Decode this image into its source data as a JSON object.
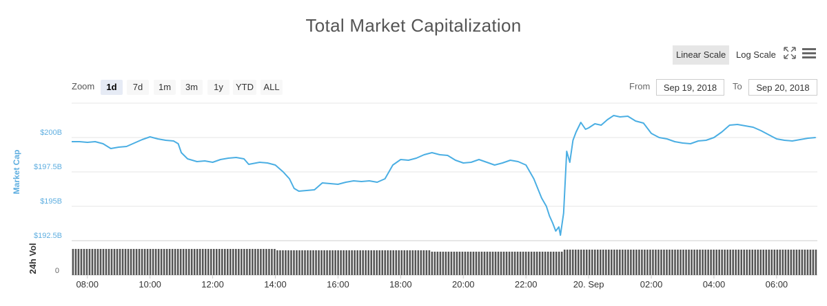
{
  "title": "Total Market Capitalization",
  "scale_buttons": {
    "linear": "Linear Scale",
    "log": "Log Scale"
  },
  "icons": {
    "fullscreen": "fullscreen-icon",
    "menu": "hamburger-menu-icon"
  },
  "zoom": {
    "label": "Zoom",
    "buttons": [
      "1d",
      "7d",
      "1m",
      "3m",
      "1y",
      "YTD",
      "ALL"
    ],
    "selected": "1d"
  },
  "range": {
    "from_label": "From",
    "from_value": "Sep 19, 2018",
    "to_label": "To",
    "to_value": "Sep 20, 2018"
  },
  "colors": {
    "line": "#4aaee3",
    "volume": "#555555",
    "axis_text": "#5eaee0",
    "grid": "#e6e6e6"
  },
  "chart_data": {
    "type": "line",
    "ylabel": "Market Cap",
    "ylim": [
      192.5,
      202.5
    ],
    "y_ticks": [
      "$192.5B",
      "$195B",
      "$197.5B",
      "$200B"
    ],
    "y_tick_values": [
      192.5,
      195,
      197.5,
      200
    ],
    "x_ticks": [
      "08:00",
      "10:00",
      "12:00",
      "14:00",
      "16:00",
      "18:00",
      "20:00",
      "22:00",
      "20. Sep",
      "02:00",
      "04:00",
      "06:00"
    ],
    "x_tick_hours": [
      8,
      10,
      12,
      14,
      16,
      18,
      20,
      22,
      24,
      26,
      28,
      30
    ],
    "x_range_hours": [
      7.5,
      31.3
    ],
    "series": [
      {
        "points": [
          [
            7.5,
            199.7
          ],
          [
            7.75,
            199.7
          ],
          [
            8.0,
            199.65
          ],
          [
            8.25,
            199.7
          ],
          [
            8.5,
            199.55
          ],
          [
            8.75,
            199.2
          ],
          [
            9.0,
            199.3
          ],
          [
            9.25,
            199.35
          ],
          [
            9.5,
            199.6
          ],
          [
            9.75,
            199.85
          ],
          [
            10.0,
            200.05
          ],
          [
            10.25,
            199.9
          ],
          [
            10.5,
            199.8
          ],
          [
            10.75,
            199.75
          ],
          [
            10.9,
            199.55
          ],
          [
            11.0,
            198.9
          ],
          [
            11.2,
            198.45
          ],
          [
            11.5,
            198.25
          ],
          [
            11.75,
            198.3
          ],
          [
            12.0,
            198.2
          ],
          [
            12.25,
            198.4
          ],
          [
            12.5,
            198.5
          ],
          [
            12.75,
            198.55
          ],
          [
            13.0,
            198.45
          ],
          [
            13.15,
            198.05
          ],
          [
            13.5,
            198.2
          ],
          [
            13.75,
            198.15
          ],
          [
            14.0,
            198.0
          ],
          [
            14.25,
            197.5
          ],
          [
            14.45,
            197.0
          ],
          [
            14.6,
            196.3
          ],
          [
            14.75,
            196.1
          ],
          [
            15.0,
            196.15
          ],
          [
            15.25,
            196.2
          ],
          [
            15.5,
            196.7
          ],
          [
            15.75,
            196.65
          ],
          [
            16.0,
            196.6
          ],
          [
            16.25,
            196.75
          ],
          [
            16.5,
            196.85
          ],
          [
            16.75,
            196.8
          ],
          [
            17.0,
            196.85
          ],
          [
            17.25,
            196.75
          ],
          [
            17.5,
            197.0
          ],
          [
            17.75,
            198.0
          ],
          [
            18.0,
            198.4
          ],
          [
            18.25,
            198.35
          ],
          [
            18.5,
            198.5
          ],
          [
            18.75,
            198.75
          ],
          [
            19.0,
            198.9
          ],
          [
            19.25,
            198.75
          ],
          [
            19.5,
            198.7
          ],
          [
            19.75,
            198.35
          ],
          [
            20.0,
            198.15
          ],
          [
            20.25,
            198.2
          ],
          [
            20.5,
            198.4
          ],
          [
            20.75,
            198.2
          ],
          [
            21.0,
            198.0
          ],
          [
            21.25,
            198.15
          ],
          [
            21.5,
            198.35
          ],
          [
            21.75,
            198.25
          ],
          [
            22.0,
            198.0
          ],
          [
            22.25,
            197.0
          ],
          [
            22.5,
            195.6
          ],
          [
            22.65,
            195.0
          ],
          [
            22.75,
            194.3
          ],
          [
            22.85,
            193.8
          ],
          [
            22.95,
            193.2
          ],
          [
            23.05,
            193.5
          ],
          [
            23.1,
            192.9
          ],
          [
            23.2,
            194.5
          ],
          [
            23.3,
            199.0
          ],
          [
            23.4,
            198.2
          ],
          [
            23.5,
            199.8
          ],
          [
            23.6,
            200.4
          ],
          [
            23.75,
            201.1
          ],
          [
            23.9,
            200.6
          ],
          [
            24.0,
            200.7
          ],
          [
            24.2,
            201.0
          ],
          [
            24.4,
            200.9
          ],
          [
            24.6,
            201.3
          ],
          [
            24.8,
            201.6
          ],
          [
            25.0,
            201.5
          ],
          [
            25.25,
            201.55
          ],
          [
            25.5,
            201.2
          ],
          [
            25.75,
            201.05
          ],
          [
            26.0,
            200.3
          ],
          [
            26.25,
            200.0
          ],
          [
            26.5,
            199.9
          ],
          [
            26.75,
            199.7
          ],
          [
            27.0,
            199.6
          ],
          [
            27.25,
            199.55
          ],
          [
            27.5,
            199.75
          ],
          [
            27.75,
            199.8
          ],
          [
            28.0,
            200.0
          ],
          [
            28.25,
            200.4
          ],
          [
            28.5,
            200.9
          ],
          [
            28.75,
            200.95
          ],
          [
            29.0,
            200.85
          ],
          [
            29.25,
            200.75
          ],
          [
            29.5,
            200.5
          ],
          [
            29.75,
            200.2
          ],
          [
            30.0,
            199.9
          ],
          [
            30.25,
            199.8
          ],
          [
            30.5,
            199.75
          ],
          [
            30.75,
            199.85
          ],
          [
            31.0,
            199.95
          ],
          [
            31.25,
            200.0
          ]
        ]
      }
    ],
    "volume": {
      "label": "24h Vol",
      "y_tick": "0"
    }
  }
}
